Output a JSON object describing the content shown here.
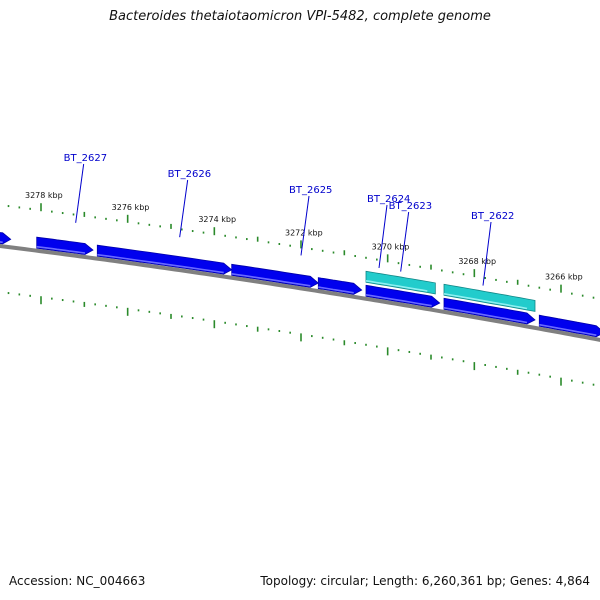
{
  "title": "Bacteroides thetaiotaomicron VPI-5482, complete genome",
  "footer": {
    "accession": "Accession: NC_004663",
    "summary": "Topology: circular; Length: 6,260,361 bp; Genes: 4,864"
  },
  "colors": {
    "gene": "#0000ee",
    "gene_highlight": "#22cccc",
    "backbone": "#808080",
    "ticks": "#2a8a2a",
    "label": "#0000cc"
  },
  "scale": {
    "unit": "kbp",
    "major_ticks": [
      3278,
      3276,
      3274,
      3272,
      3270,
      3268,
      3266
    ]
  },
  "tick_labels": [
    "3278 kbp",
    "3276 kbp",
    "3274 kbp",
    "3272 kbp",
    "3270 kbp",
    "3268 kbp",
    "3266 kbp"
  ],
  "gene_labels": [
    "BT_2627",
    "BT_2626",
    "BT_2625",
    "BT_2624",
    "BT_2623",
    "BT_2622"
  ],
  "genes": [
    {
      "from": 3279.8,
      "to": 3278.7,
      "strand": "inner",
      "highlight": false
    },
    {
      "from": 3278.1,
      "to": 3276.8,
      "strand": "inner",
      "highlight": false
    },
    {
      "from": 3276.7,
      "to": 3273.6,
      "strand": "inner",
      "highlight": false
    },
    {
      "from": 3273.6,
      "to": 3271.6,
      "strand": "inner",
      "highlight": false
    },
    {
      "from": 3271.6,
      "to": 3270.6,
      "strand": "inner",
      "highlight": false
    },
    {
      "from": 3270.5,
      "to": 3268.8,
      "strand": "inner",
      "highlight": false
    },
    {
      "from": 3268.7,
      "to": 3266.6,
      "strand": "inner",
      "highlight": false
    },
    {
      "from": 3266.5,
      "to": 3265.0,
      "strand": "inner",
      "highlight": false
    },
    {
      "from": 3270.5,
      "to": 3268.9,
      "strand": "outer",
      "highlight": true
    },
    {
      "from": 3268.7,
      "to": 3266.6,
      "strand": "outer",
      "highlight": true
    }
  ],
  "gene_label_targets": [
    3277.2,
    3274.8,
    3272.0,
    3270.2,
    3269.7,
    3267.8
  ]
}
